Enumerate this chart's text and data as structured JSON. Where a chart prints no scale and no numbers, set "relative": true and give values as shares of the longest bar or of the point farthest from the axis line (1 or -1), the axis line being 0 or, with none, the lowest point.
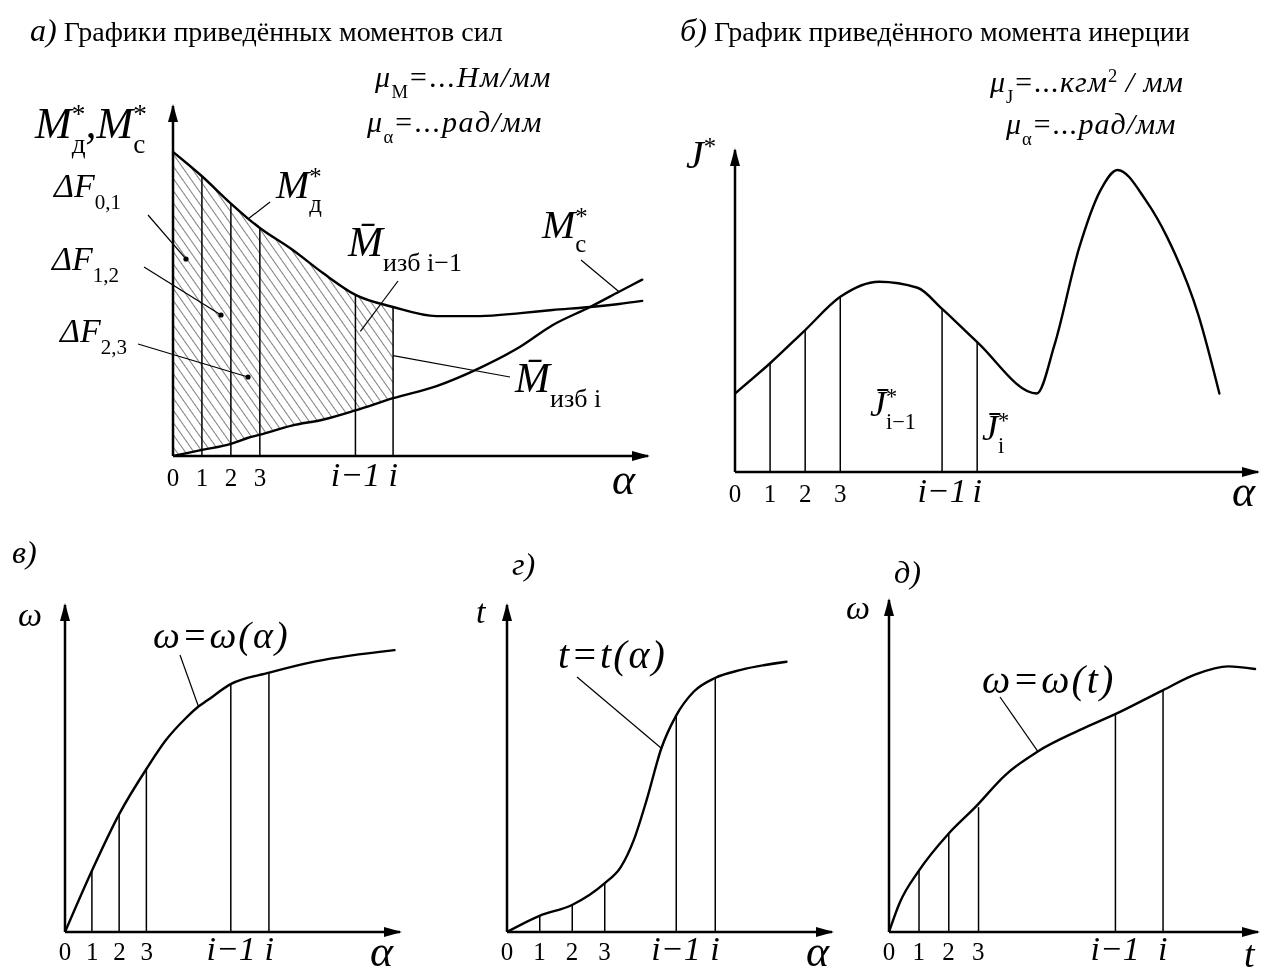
{
  "chart_data": [
    {
      "type": "line",
      "title": "а) Графики приведённых моментов сил",
      "xlabel": "α",
      "ylabel": "M$^{*}$$_{д}$,M$^{*}$$_{с}$",
      "relative": true,
      "x": [
        0,
        1,
        2,
        2.6,
        3,
        4.1,
        5.2,
        6.3,
        7.6,
        9.1,
        10.6,
        12,
        13.1,
        14.4,
        15.4,
        16.2
      ],
      "series": [
        {
          "name": "M$^{*}$$_{д}$",
          "color": "#000000",
          "values": [
            1,
            0.92,
            0.83,
            0.78,
            0.75,
            0.68,
            0.6,
            0.53,
            0.49,
            0.46,
            0.46,
            0.47,
            0.48,
            0.49,
            0.5,
            0.51
          ],
          "lower": [
            0,
            0.02,
            0.04,
            0.06,
            0.07,
            0.1,
            0.12,
            0.15,
            0.19,
            null,
            null,
            null,
            null,
            null,
            null,
            null
          ],
          "upper": [
            1,
            0.92,
            0.83,
            0.78,
            0.75,
            0.68,
            0.6,
            0.53,
            0.49,
            null,
            null,
            null,
            null,
            null,
            null,
            null
          ]
        },
        {
          "name": "M$^{*}$$_{с}$",
          "color": "#000000",
          "values": [
            0,
            0.02,
            0.04,
            0.06,
            0.07,
            0.1,
            0.12,
            0.15,
            0.19,
            0.23,
            0.29,
            0.36,
            0.43,
            0.49,
            0.54,
            0.58
          ]
        },
        {
          "type": "bar",
          "color": "#000000",
          "x": [
            1,
            2,
            3,
            6.3,
            7.6
          ],
          "values": [
            0.92,
            0.83,
            0.75,
            0.53,
            0.49
          ]
        }
      ],
      "xlim": [
        0,
        16.4
      ],
      "xticks": [
        0,
        1,
        2,
        3,
        {
          "value": 6.3,
          "label": "i−1"
        },
        {
          "value": 7.6,
          "label": "i"
        }
      ],
      "annotations": [
        "μ$_{M}$=...Нм/мм",
        "μ$_{α}$=...рад/мм",
        "ΔF$_{0,1}$",
        "ΔF$_{1,2}$",
        "ΔF$_{2,3}$",
        {
          "text": "M̄$_{изб i−1}$",
          "x": 6.47,
          "y": 0.41
        },
        {
          "text": "M̄$_{изб i}$",
          "x": 7.6,
          "y": 0.33
        }
      ]
    },
    {
      "type": "line",
      "title": "б) График приведённого момента инерции",
      "xlabel": "α",
      "ylabel": "J$^{*}$",
      "relative": true,
      "x": [
        0,
        1,
        2,
        3,
        4.1,
        5.2,
        5.9,
        6.9,
        8.6,
        9.1,
        9.8,
        10.4,
        10.9,
        11.7,
        12.3,
        13.2,
        13.8
      ],
      "series": [
        {
          "color": "#000000",
          "values": [
            0.26,
            0.36,
            0.47,
            0.58,
            0.63,
            0.61,
            0.54,
            0.43,
            0.26,
            0.42,
            0.74,
            0.93,
            1,
            0.9,
            0.78,
            0.52,
            0.26
          ]
        },
        {
          "type": "bar",
          "color": "#000000",
          "x": [
            1,
            2,
            3,
            5.9,
            6.9
          ],
          "values": [
            0.36,
            0.47,
            0.58,
            0.54,
            0.43
          ]
        }
      ],
      "xlim": [
        0,
        14.9
      ],
      "xticks": [
        0,
        1,
        2,
        3,
        {
          "value": 5.9,
          "label": "i−1"
        },
        {
          "value": 6.9,
          "label": "i"
        }
      ],
      "annotations": [
        "μ$_{J}$=...кгм$^{2}$ / мм",
        "μ$_{α}$=...рад/мм",
        "J̄$^{*}$$_{i−1}$",
        "J̄$^{*}$$_{i}$"
      ]
    },
    {
      "type": "line",
      "title": "в)",
      "xlabel": "α",
      "ylabel": "ω",
      "relative": true,
      "x": [
        0,
        1,
        2,
        3,
        3.7,
        4.45,
        4.9,
        5.2,
        6.1,
        7.5,
        9.2,
        12.1
      ],
      "series": [
        {
          "name": "ω=ω(α)",
          "color": "#000000",
          "values": [
            0,
            0.22,
            0.42,
            0.58,
            0.68,
            0.76,
            0.8,
            0.82,
            0.88,
            0.92,
            0.96,
            1
          ]
        },
        {
          "type": "bar",
          "color": "#000000",
          "x": [
            1,
            2,
            3,
            6.1,
            7.5
          ],
          "values": [
            0.22,
            0.42,
            0.58,
            0.88,
            0.92
          ]
        }
      ],
      "xlim": [
        0,
        12.3
      ],
      "xticks": [
        0,
        1,
        2,
        3,
        {
          "value": 6.1,
          "label": "i−1"
        },
        {
          "value": 7.5,
          "label": "i"
        }
      ]
    },
    {
      "type": "line",
      "title": "г)",
      "xlabel": "α",
      "ylabel": "t",
      "relative": true,
      "x": [
        0,
        1,
        2,
        3,
        3.5,
        3.9,
        4.3,
        4.75,
        5.2,
        5.75,
        6.4,
        7.2,
        8.6
      ],
      "series": [
        {
          "name": "t=t(α)",
          "color": "#000000",
          "values": [
            0,
            0.06,
            0.1,
            0.18,
            0.24,
            0.34,
            0.49,
            0.68,
            0.8,
            0.89,
            0.94,
            0.97,
            1
          ]
        },
        {
          "type": "bar",
          "color": "#000000",
          "x": [
            1,
            2,
            3,
            5.2,
            6.4
          ],
          "values": [
            0.06,
            0.1,
            0.18,
            0.8,
            0.94
          ]
        }
      ],
      "xlim": [
        0,
        10
      ],
      "xticks": [
        0,
        1,
        2,
        3,
        {
          "value": 5.2,
          "label": "i−1"
        },
        {
          "value": 6.4,
          "label": "i"
        }
      ]
    },
    {
      "type": "line",
      "title": "д)",
      "xlabel": "t",
      "ylabel": "ω",
      "relative": true,
      "x": [
        0,
        0.36,
        1,
        2,
        2.9,
        3.9,
        5,
        6.4,
        7.6,
        9.2,
        10.3,
        11.4,
        12.3
      ],
      "series": [
        {
          "name": "ω=ω(t)",
          "color": "#000000",
          "values": [
            0,
            0.11,
            0.23,
            0.37,
            0.47,
            0.59,
            0.68,
            0.76,
            0.82,
            0.91,
            0.97,
            1,
            0.99
          ]
        },
        {
          "type": "bar",
          "color": "#000000",
          "x": [
            1,
            2,
            3,
            7.6,
            9.2
          ],
          "values": [
            0.23,
            0.37,
            0.47,
            0.82,
            0.91
          ]
        }
      ],
      "xlim": [
        0,
        12.4
      ],
      "xticks": [
        0,
        1,
        2,
        3,
        {
          "value": 7.6,
          "label": "i−1"
        },
        {
          "value": 9.2,
          "label": "i"
        }
      ]
    }
  ]
}
